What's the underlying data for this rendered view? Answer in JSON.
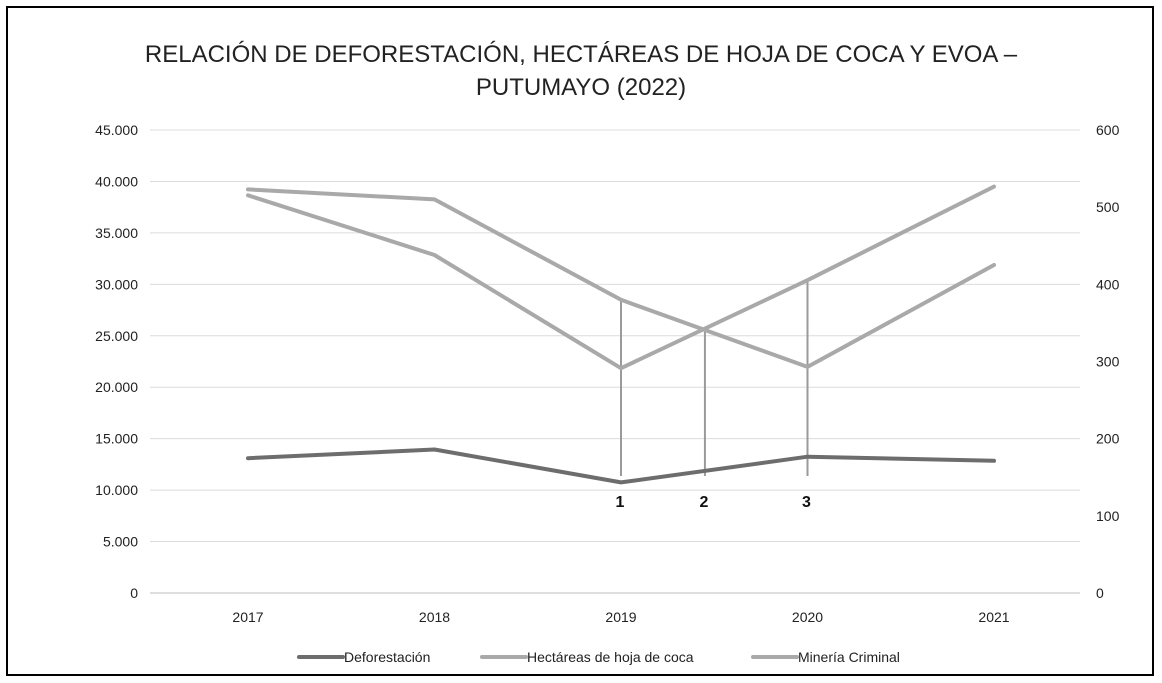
{
  "chart_data": {
    "type": "line",
    "title_line1": "RELACIÓN DE DEFORESTACIÓN, HECTÁREAS DE HOJA DE COCA Y EVOA –",
    "title_line2": "PUTUMAYO (2022)",
    "categories": [
      "2017",
      "2018",
      "2019",
      "2020",
      "2021"
    ],
    "left_axis": {
      "min": 0,
      "max": 45000,
      "step": 5000,
      "tick_labels": [
        "0",
        "5.000",
        "10.000",
        "15.000",
        "20.000",
        "25.000",
        "30.000",
        "35.000",
        "40.000",
        "45.000"
      ]
    },
    "right_axis": {
      "min": 0,
      "max": 600,
      "step": 100,
      "tick_labels": [
        "0",
        "100",
        "200",
        "300",
        "400",
        "500",
        "600"
      ]
    },
    "grid": "horizontal",
    "legend_position": "bottom",
    "series": [
      {
        "name": "Deforestación",
        "axis": "left",
        "color": "#6d6d6d",
        "values": [
          13100,
          13950,
          10750,
          13250,
          12850
        ]
      },
      {
        "name": "Hectáreas de hoja de coca",
        "axis": "left",
        "color": "#a9a9a9",
        "values": [
          38650,
          32850,
          21850,
          30400,
          39500
        ]
      },
      {
        "name": "Minería Criminal",
        "axis": "right",
        "color": "#a9a9a9",
        "values": [
          523,
          510,
          380,
          293,
          425
        ]
      }
    ],
    "annotations": [
      {
        "label": "1",
        "x": 2019
      },
      {
        "label": "2",
        "x": 2019.45
      },
      {
        "label": "3",
        "x": 2020
      }
    ]
  }
}
